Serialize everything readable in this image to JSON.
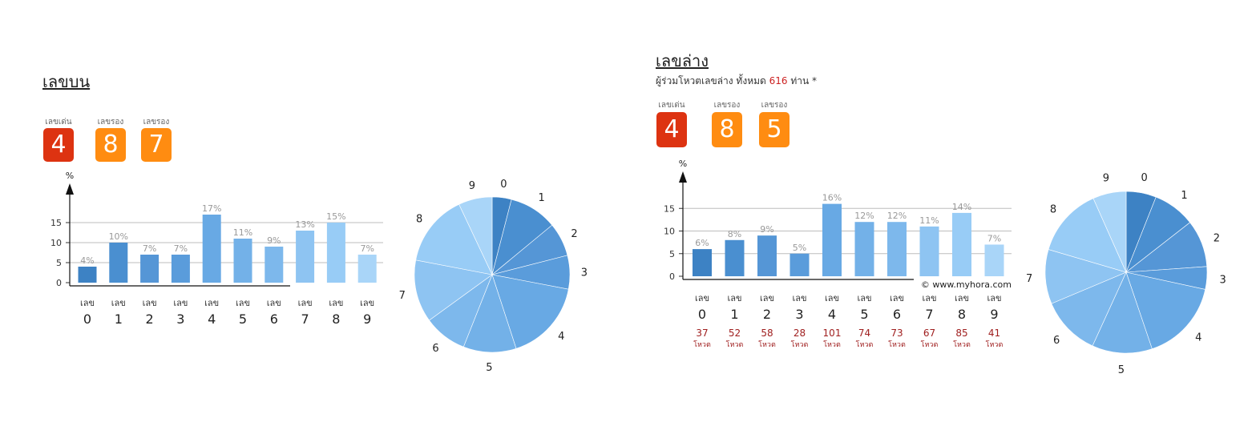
{
  "upper": {
    "title": "เลขบน",
    "ranks": [
      {
        "label": "เลขเด่น",
        "value": "4"
      },
      {
        "label": "เลขรอง",
        "value": "8"
      },
      {
        "label": "เลขรอง",
        "value": "7"
      }
    ]
  },
  "lower": {
    "title": "เลขล่าง",
    "subtitle_prefix": "ผู้ร่วมโหวตเลขล่าง ทั้งหมด",
    "subtitle_count": "616",
    "subtitle_suffix": "ท่าน *",
    "ranks": [
      {
        "label": "เลขเด่น",
        "value": "4"
      },
      {
        "label": "เลขรอง",
        "value": "8"
      },
      {
        "label": "เลขรอง",
        "value": "5"
      }
    ],
    "copyright": "© www.myhora.com"
  },
  "colors": {
    "bars": [
      "#3d82c4",
      "#4a8fd0",
      "#5596d6",
      "#5a9cdb",
      "#68a9e4",
      "#73b1e8",
      "#7db8ec",
      "#8ec4f2",
      "#98ccf6",
      "#a9d5f8"
    ]
  },
  "chart_data": [
    {
      "type": "bar",
      "ylabel": "%",
      "ylim": [
        0,
        20
      ],
      "yticks": [
        0,
        5,
        10,
        15
      ],
      "grid": true,
      "category_prefix": "เลข",
      "categories": [
        "0",
        "1",
        "2",
        "3",
        "4",
        "5",
        "6",
        "7",
        "8",
        "9"
      ],
      "values": [
        4,
        10,
        7,
        7,
        17,
        11,
        9,
        13,
        15,
        7
      ],
      "value_labels": [
        "4%",
        "10%",
        "7%",
        "7%",
        "17%",
        "11%",
        "9%",
        "13%",
        "15%",
        "7%"
      ]
    },
    {
      "type": "pie",
      "labels": [
        "0",
        "1",
        "2",
        "3",
        "4",
        "5",
        "6",
        "7",
        "8",
        "9"
      ],
      "values": [
        4,
        10,
        7,
        7,
        17,
        11,
        9,
        13,
        15,
        7
      ]
    },
    {
      "type": "bar",
      "ylabel": "%",
      "ylim": [
        0,
        20
      ],
      "yticks": [
        0,
        5,
        10,
        15
      ],
      "grid": true,
      "category_prefix": "เลข",
      "categories": [
        "0",
        "1",
        "2",
        "3",
        "4",
        "5",
        "6",
        "7",
        "8",
        "9"
      ],
      "values": [
        6,
        8,
        9,
        5,
        16,
        12,
        12,
        11,
        14,
        7
      ],
      "value_labels": [
        "6%",
        "8%",
        "9%",
        "5%",
        "16%",
        "12%",
        "12%",
        "11%",
        "14%",
        "7%"
      ],
      "votes": [
        37,
        52,
        58,
        28,
        101,
        74,
        73,
        67,
        85,
        41
      ],
      "vote_unit": "โหวต"
    },
    {
      "type": "pie",
      "labels": [
        "0",
        "1",
        "2",
        "3",
        "4",
        "5",
        "6",
        "7",
        "8",
        "9"
      ],
      "values": [
        37,
        52,
        58,
        28,
        101,
        74,
        73,
        67,
        85,
        41
      ]
    }
  ]
}
